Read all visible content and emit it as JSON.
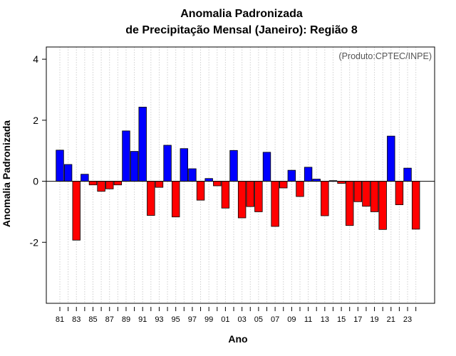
{
  "chart_data": {
    "type": "bar",
    "title_line1": "Anomalia Padronizada",
    "title_line2": "de Precipitação Mensal (Janeiro): Região 8",
    "xlabel": "Ano",
    "ylabel": "Anomalia Padronizada",
    "credit": "(Produto:CPTEC/INPE)",
    "ylim": [
      -4,
      4.4
    ],
    "yticks": [
      -2,
      0,
      2,
      4
    ],
    "ytick_labels": [
      "-2",
      "0",
      "2",
      "4"
    ],
    "xtick_labels": [
      "81",
      "83",
      "85",
      "87",
      "89",
      "91",
      "93",
      "95",
      "97",
      "99",
      "01",
      "03",
      "05",
      "07",
      "09",
      "11",
      "13",
      "15",
      "17",
      "19",
      "21",
      "23"
    ],
    "categories": [
      "81",
      "82",
      "83",
      "84",
      "85",
      "86",
      "87",
      "88",
      "89",
      "90",
      "91",
      "92",
      "93",
      "94",
      "95",
      "96",
      "97",
      "98",
      "99",
      "00",
      "01",
      "02",
      "03",
      "04",
      "05",
      "06",
      "07",
      "08",
      "09",
      "10",
      "11",
      "12",
      "13",
      "14",
      "15",
      "16",
      "17",
      "18",
      "19",
      "20",
      "21",
      "22",
      "23",
      "24"
    ],
    "values": [
      1.02,
      0.55,
      -1.93,
      0.23,
      -0.12,
      -0.33,
      -0.25,
      -0.12,
      1.65,
      0.98,
      2.43,
      -1.12,
      -0.2,
      1.18,
      -1.17,
      1.07,
      0.41,
      -0.62,
      0.09,
      -0.15,
      -0.88,
      1.01,
      -1.2,
      -0.83,
      -1.0,
      0.95,
      -1.48,
      -0.22,
      0.36,
      -0.5,
      0.46,
      0.07,
      -1.13,
      0.02,
      -0.07,
      -1.45,
      -0.67,
      -0.82,
      -1.0,
      -1.58,
      1.48,
      -0.77,
      0.43,
      -1.57
    ],
    "colors": {
      "positive": "#0000ff",
      "negative": "#ff0000",
      "grid": "#d0d0d0",
      "axis": "#000000"
    },
    "grid": true
  }
}
